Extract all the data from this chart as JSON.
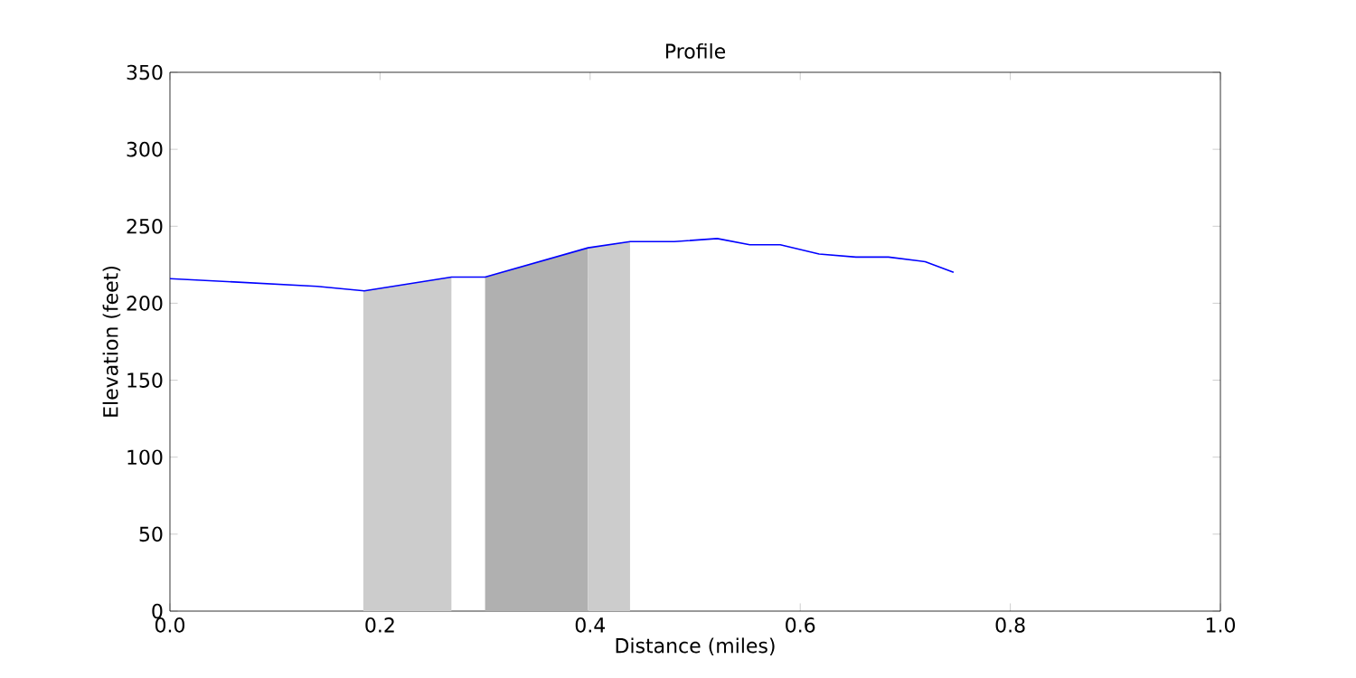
{
  "chart_data": {
    "type": "line",
    "title": "Profile",
    "xlabel": "Distance (miles)",
    "ylabel": "Elevation (feet)",
    "series": [
      {
        "type": "area",
        "color": "#cccccc",
        "x": [
          0.184,
          0.268
        ],
        "values": [
          208,
          217
        ]
      },
      {
        "type": "area",
        "color": "#b0b0b0",
        "x": [
          0.3,
          0.398
        ],
        "values": [
          217,
          236
        ]
      },
      {
        "type": "area",
        "color": "#cccccc",
        "x": [
          0.398,
          0.438
        ],
        "values": [
          236,
          240
        ]
      },
      {
        "color": "#0000ff",
        "x": [
          0.0,
          0.14,
          0.185,
          0.268,
          0.3,
          0.398,
          0.438,
          0.48,
          0.521,
          0.552,
          0.581,
          0.618,
          0.653,
          0.684,
          0.719,
          0.746
        ],
        "values": [
          216,
          211,
          208,
          217,
          217,
          236,
          240,
          240,
          242,
          238,
          238,
          232,
          230,
          230,
          227,
          220
        ]
      }
    ],
    "xlim": [
      0,
      1
    ],
    "ylim": [
      0,
      350
    ],
    "xticks": [
      {
        "value": 0,
        "label": "0.0"
      },
      {
        "value": 0.2,
        "label": "0.2"
      },
      {
        "value": 0.4,
        "label": "0.4"
      },
      {
        "value": 0.6,
        "label": "0.6"
      },
      {
        "value": 0.8,
        "label": "0.8"
      },
      {
        "value": 1,
        "label": "1.0"
      }
    ],
    "yticks": [
      0,
      50,
      100,
      150,
      200,
      250,
      300,
      350
    ],
    "grid": false
  }
}
